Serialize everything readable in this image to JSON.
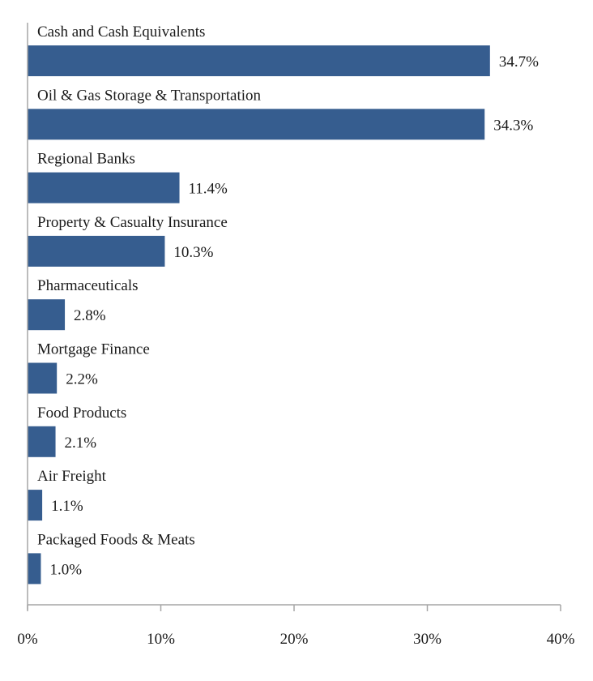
{
  "chart_data": {
    "type": "bar",
    "orientation": "horizontal",
    "title": "",
    "xlabel": "",
    "ylabel": "",
    "categories": [
      "Cash and Cash Equivalents",
      "Oil & Gas Storage & Transportation",
      "Regional Banks",
      "Property & Casualty Insurance",
      "Pharmaceuticals",
      "Mortgage Finance",
      "Food Products",
      "Air Freight",
      "Packaged Foods & Meats"
    ],
    "values": [
      34.7,
      34.3,
      11.4,
      10.3,
      2.8,
      2.2,
      2.1,
      1.1,
      1.0
    ],
    "value_labels": [
      "34.7%",
      "34.3%",
      "11.4%",
      "10.3%",
      "2.8%",
      "2.2%",
      "2.1%",
      "1.1%",
      "1.0%"
    ],
    "xlim": [
      0,
      40
    ],
    "x_ticks": [
      0,
      10,
      20,
      30,
      40
    ],
    "x_tick_labels": [
      "0%",
      "10%",
      "20%",
      "30%",
      "40%"
    ],
    "grid": false,
    "legend": "none",
    "bar_color": "#365d8f"
  }
}
